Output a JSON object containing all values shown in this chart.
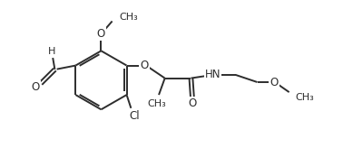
{
  "background_color": "#ffffff",
  "line_color": "#2d2d2d",
  "line_width": 1.4,
  "font_size": 8.5,
  "fig_width": 3.89,
  "fig_height": 1.85,
  "dpi": 100,
  "xlim": [
    0,
    10.5
  ],
  "ylim": [
    0,
    4.8
  ]
}
